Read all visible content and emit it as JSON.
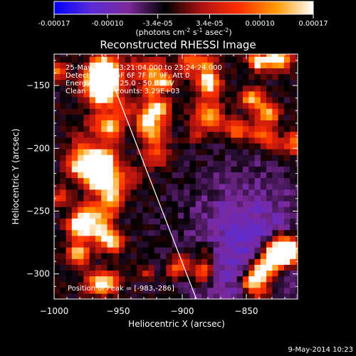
{
  "colorbar": {
    "tick_labels": [
      "-0.00017",
      "-0.00010",
      "-3.4e-05",
      "3.4e-05",
      "0.00010",
      "0.00017"
    ],
    "tick_values": [
      -0.00017,
      -0.0001,
      -3.4e-05,
      3.4e-05,
      0.0001,
      0.00017
    ],
    "range": [
      -0.00017,
      0.00017
    ],
    "unit_text": "(photons cm",
    "unit_exp1": "-2",
    "unit_mid": " s",
    "unit_exp2": "-1",
    "unit_mid2": " asec",
    "unit_exp3": "-2",
    "unit_close": ")"
  },
  "chart_data": {
    "type": "heatmap",
    "title": "Reconstructed RHESSI Image",
    "xlabel": "Heliocentric X (arcsec)",
    "ylabel": "Heliocentric Y (arcsec)",
    "xlim": [
      -1000,
      -810
    ],
    "ylim": [
      -320,
      -125
    ],
    "x_ticks": [
      -1000,
      -950,
      -900,
      -850
    ],
    "y_ticks": [
      -150,
      -200,
      -250,
      -300
    ],
    "x_tick_labels": [
      "−1000",
      "−950",
      "−900",
      "−850"
    ],
    "y_tick_labels": [
      "−150",
      "−200",
      "−250",
      "−300"
    ],
    "annotations": [
      "25-May-2012 23:21:04.000 to 23:24:24.000",
      "Detectors: 3F 5F 6F 7F 8F 9F, Att 0",
      "Energy Range: 25.0 - 50.0 keV",
      "Clean     Total counts: 3.29E+03"
    ],
    "peak_label": "Position of Peak = [-983,-286]",
    "peak": [
      -983,
      -286
    ],
    "limb_line": [
      [
        -963,
        -125
      ],
      [
        -889,
        -320
      ]
    ],
    "grid": false,
    "colormap": [
      "#0000ff",
      "#5a2bd6",
      "#7c2a9a",
      "#000000",
      "#b01212",
      "#ff3000",
      "#ff9a00",
      "#ffffff"
    ]
  },
  "footer": {
    "date": "9-May-2014 10:23"
  }
}
